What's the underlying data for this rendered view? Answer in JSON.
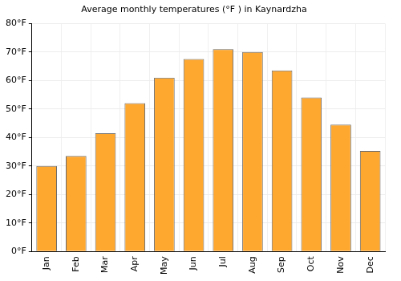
{
  "chart_data": {
    "type": "bar",
    "title": "Average monthly temperatures (°F ) in Kaynardzha",
    "categories": [
      "Jan",
      "Feb",
      "Mar",
      "Apr",
      "May",
      "Jun",
      "Jul",
      "Aug",
      "Sep",
      "Oct",
      "Nov",
      "Dec"
    ],
    "values": [
      30,
      33.5,
      41.5,
      52,
      61,
      67.5,
      71,
      70,
      63.5,
      54,
      44.5,
      35.3
    ],
    "color": "#ffa830",
    "ylim": [
      0,
      80
    ],
    "yticks": [
      {
        "value": 0,
        "label": "0°F"
      },
      {
        "value": 10,
        "label": "10°F"
      },
      {
        "value": 20,
        "label": "20°F"
      },
      {
        "value": 30,
        "label": "30°F"
      },
      {
        "value": 40,
        "label": "40°F"
      },
      {
        "value": 50,
        "label": "50°F"
      },
      {
        "value": 60,
        "label": "60°F"
      },
      {
        "value": 70,
        "label": "70°F"
      },
      {
        "value": 80,
        "label": "80°F"
      }
    ],
    "grid": true
  }
}
